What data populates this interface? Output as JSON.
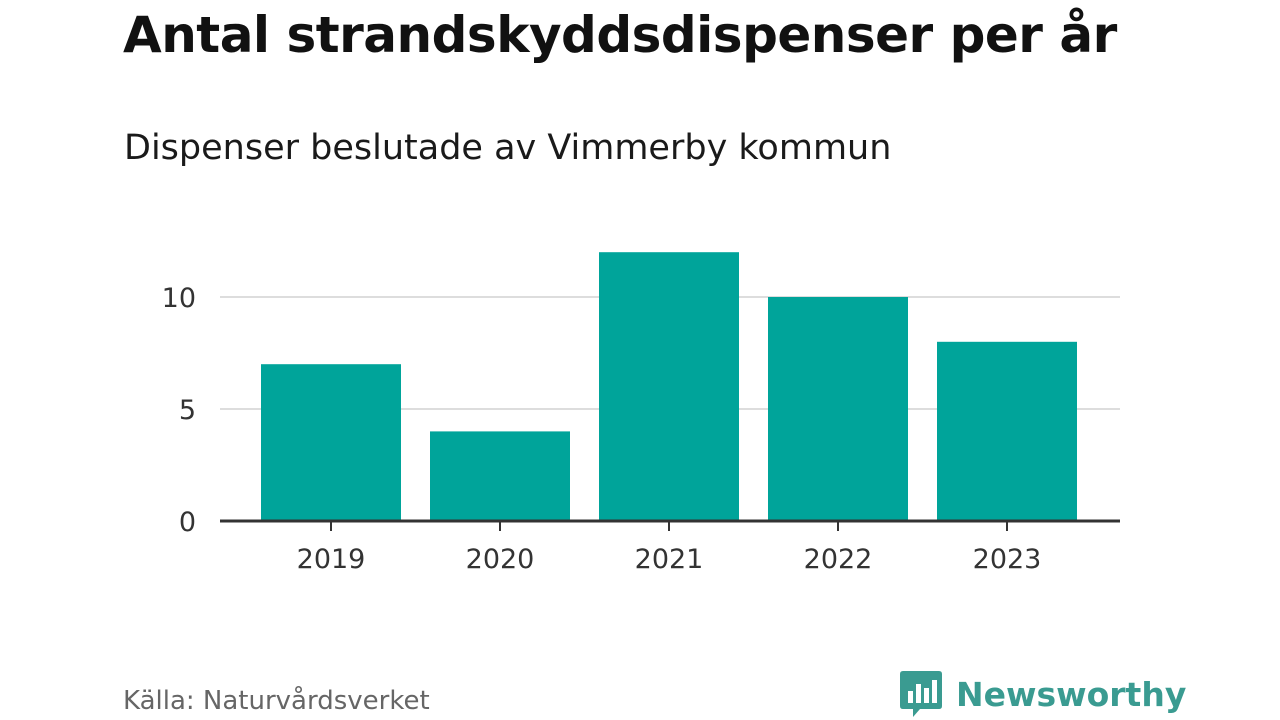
{
  "header": {
    "title": "Antal strandskyddsdispenser per år",
    "subtitle": "Dispenser beslutade av Vimmerby kommun"
  },
  "footer": {
    "source": "Källa: Naturvårdsverket",
    "brand": "Newsworthy"
  },
  "colors": {
    "bar": "#00a49a",
    "brand": "#3a9b91",
    "grid": "#dddddd",
    "axis": "#333333"
  },
  "icons": {
    "brand_logo": "bar-chart-speech-bubble-icon"
  },
  "chart_data": {
    "type": "bar",
    "title": "Antal strandskyddsdispenser per år",
    "subtitle": "Dispenser beslutade av Vimmerby kommun",
    "categories": [
      "2019",
      "2020",
      "2021",
      "2022",
      "2023"
    ],
    "values": [
      7,
      4,
      12,
      10,
      8
    ],
    "xlabel": "",
    "ylabel": "",
    "ylim": [
      0,
      12
    ],
    "yticks": [
      0,
      5,
      10
    ],
    "grid": true,
    "legend": "none"
  }
}
